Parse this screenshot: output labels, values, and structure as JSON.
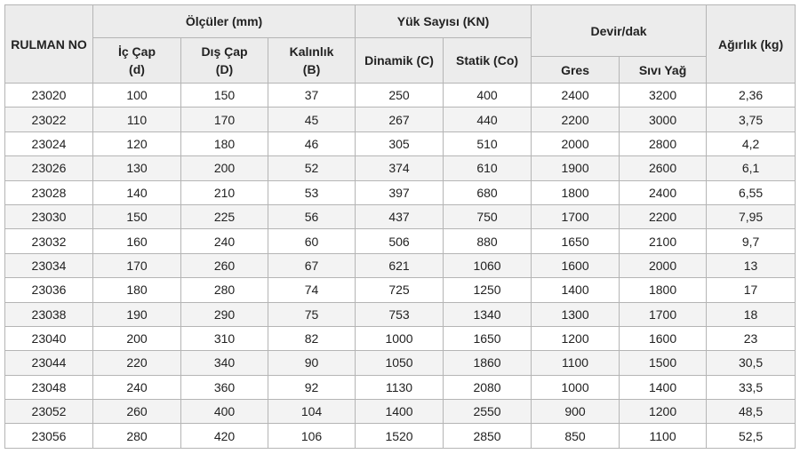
{
  "table": {
    "header": {
      "rulman_no": "RULMAN NO",
      "olculer": "Ölçüler (mm)",
      "yuk": "Yük Sayısı (KN)",
      "devir": "Devir/dak",
      "agirlik": "Ağırlık (kg)",
      "columns": [
        "İç Çap (d)",
        "Dış Çap (D)",
        "Kalınlık (B)",
        "Dinamik (C)",
        "Statik (Co)",
        "Gres",
        "Sıvı Yağ"
      ]
    },
    "rows": [
      [
        "23020",
        "100",
        "150",
        "37",
        "250",
        "400",
        "2400",
        "3200",
        "2,36"
      ],
      [
        "23022",
        "110",
        "170",
        "45",
        "267",
        "440",
        "2200",
        "3000",
        "3,75"
      ],
      [
        "23024",
        "120",
        "180",
        "46",
        "305",
        "510",
        "2000",
        "2800",
        "4,2"
      ],
      [
        "23026",
        "130",
        "200",
        "52",
        "374",
        "610",
        "1900",
        "2600",
        "6,1"
      ],
      [
        "23028",
        "140",
        "210",
        "53",
        "397",
        "680",
        "1800",
        "2400",
        "6,55"
      ],
      [
        "23030",
        "150",
        "225",
        "56",
        "437",
        "750",
        "1700",
        "2200",
        "7,95"
      ],
      [
        "23032",
        "160",
        "240",
        "60",
        "506",
        "880",
        "1650",
        "2100",
        "9,7"
      ],
      [
        "23034",
        "170",
        "260",
        "67",
        "621",
        "1060",
        "1600",
        "2000",
        "13"
      ],
      [
        "23036",
        "180",
        "280",
        "74",
        "725",
        "1250",
        "1400",
        "1800",
        "17"
      ],
      [
        "23038",
        "190",
        "290",
        "75",
        "753",
        "1340",
        "1300",
        "1700",
        "18"
      ],
      [
        "23040",
        "200",
        "310",
        "82",
        "1000",
        "1650",
        "1200",
        "1600",
        "23"
      ],
      [
        "23044",
        "220",
        "340",
        "90",
        "1050",
        "1860",
        "1100",
        "1500",
        "30,5"
      ],
      [
        "23048",
        "240",
        "360",
        "92",
        "1130",
        "2080",
        "1000",
        "1400",
        "33,5"
      ],
      [
        "23052",
        "260",
        "400",
        "104",
        "1400",
        "2550",
        "900",
        "1200",
        "48,5"
      ],
      [
        "23056",
        "280",
        "420",
        "106",
        "1520",
        "2850",
        "850",
        "1100",
        "52,5"
      ]
    ]
  }
}
